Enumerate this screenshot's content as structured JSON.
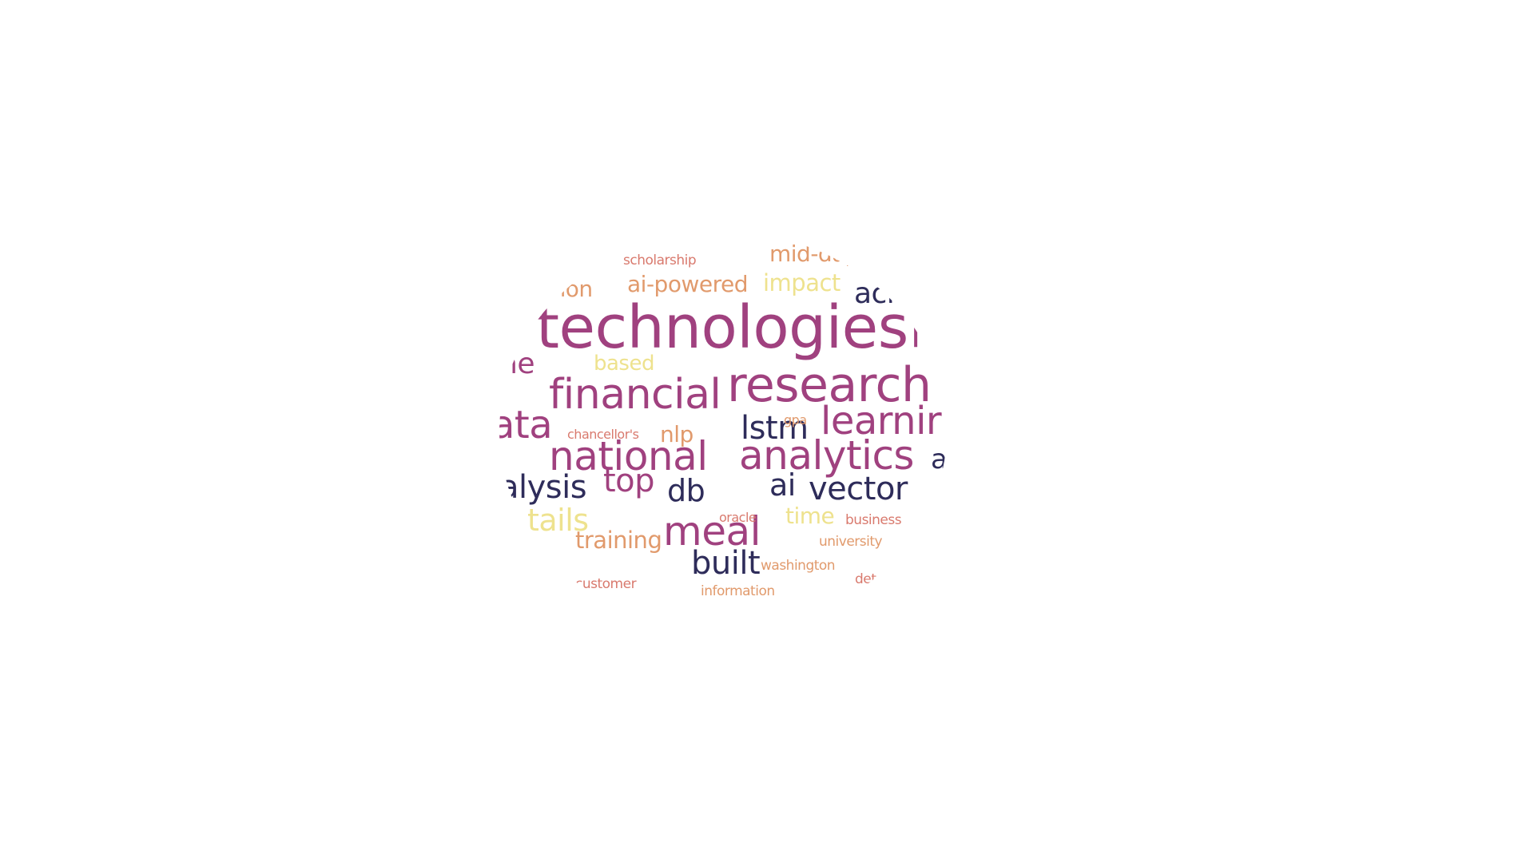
{
  "palette": {
    "magenta": "#a0417f",
    "navy": "#2e2c5a",
    "peach": "#e19a6c",
    "yellow": "#eee28e",
    "rose": "#d97a6e"
  },
  "words": [
    {
      "text": "technologies",
      "color": "magenta"
    },
    {
      "text": "research",
      "color": "magenta"
    },
    {
      "text": "financial",
      "color": "magenta"
    },
    {
      "text": "national",
      "color": "magenta"
    },
    {
      "text": "analytics",
      "color": "magenta"
    },
    {
      "text": "learnir",
      "color": "magenta"
    },
    {
      "text": "meal",
      "color": "magenta"
    },
    {
      "text": "ata",
      "color": "magenta"
    },
    {
      "text": "lstm",
      "color": "navy"
    },
    {
      "text": "vector",
      "color": "navy"
    },
    {
      "text": "built",
      "color": "navy"
    },
    {
      "text": "db",
      "color": "navy"
    },
    {
      "text": "ai",
      "color": "navy"
    },
    {
      "text": "acr",
      "color": "navy"
    },
    {
      "text": "a",
      "color": "navy"
    },
    {
      "text": "alysis",
      "color": "navy"
    },
    {
      "text": "top",
      "color": "magenta"
    },
    {
      "text": "ne",
      "color": "magenta"
    },
    {
      "text": "l",
      "color": "magenta"
    },
    {
      "text": "ai-powered",
      "color": "peach"
    },
    {
      "text": "mid-day",
      "color": "peach"
    },
    {
      "text": "thon",
      "color": "peach"
    },
    {
      "text": "training",
      "color": "peach"
    },
    {
      "text": "nlp",
      "color": "peach"
    },
    {
      "text": "impact",
      "color": "yellow"
    },
    {
      "text": "based",
      "color": "yellow"
    },
    {
      "text": "time",
      "color": "yellow"
    },
    {
      "text": "tails",
      "color": "yellow"
    },
    {
      "text": "scholarship",
      "color": "rose"
    },
    {
      "text": "chancellor's",
      "color": "rose"
    },
    {
      "text": "gpa",
      "color": "peach"
    },
    {
      "text": "oracle",
      "color": "rose"
    },
    {
      "text": "business",
      "color": "rose"
    },
    {
      "text": "university",
      "color": "peach"
    },
    {
      "text": "washington",
      "color": "peach"
    },
    {
      "text": "customer",
      "color": "rose"
    },
    {
      "text": "information",
      "color": "peach"
    },
    {
      "text": "det",
      "color": "rose"
    }
  ]
}
